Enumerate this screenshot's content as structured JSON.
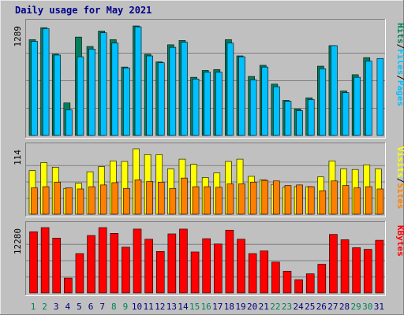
{
  "title": "Daily usage for May 2021",
  "colors": {
    "background": "#c0c0c0",
    "panel": "#c0c0c0",
    "hits": "#00805c",
    "files": "#00c0ff",
    "sites": "#ff8000",
    "visits": "#ffff00",
    "kbytes": "#ff0000",
    "scale": "#000000",
    "title": "#00008b",
    "weekend_label": "#00805c",
    "weekday_label": "#000080"
  },
  "chart_data": [
    {
      "type": "bar",
      "panel": "hits-files",
      "categories": [
        "1",
        "2",
        "3",
        "4",
        "5",
        "6",
        "7",
        "8",
        "9",
        "10",
        "11",
        "12",
        "13",
        "14",
        "15",
        "16",
        "17",
        "18",
        "19",
        "20",
        "21",
        "22",
        "23",
        "24",
        "25",
        "26",
        "27",
        "28",
        "29",
        "30",
        "31"
      ],
      "scale_label": "1289",
      "ylim": [
        0,
        1289
      ],
      "legend": [
        "Hits",
        "/",
        "Files",
        "/",
        "Pages"
      ],
      "series": [
        {
          "name": "Hits",
          "values": [
            1120,
            1260,
            950,
            380,
            1150,
            1040,
            1220,
            1120,
            800,
            1280,
            950,
            860,
            1060,
            1110,
            680,
            760,
            770,
            1120,
            930,
            690,
            820,
            600,
            410,
            310,
            440,
            810,
            1050,
            520,
            710,
            910,
            0
          ]
        },
        {
          "name": "Files",
          "values": [
            1100,
            1250,
            940,
            300,
            920,
            1010,
            1200,
            1080,
            790,
            1270,
            930,
            850,
            1030,
            1090,
            660,
            740,
            740,
            1080,
            920,
            650,
            800,
            570,
            400,
            290,
            420,
            780,
            1050,
            500,
            680,
            870,
            900
          ]
        },
        {
          "name": "Pages",
          "values": [
            0,
            0,
            0,
            0,
            0,
            0,
            0,
            0,
            0,
            0,
            0,
            0,
            0,
            0,
            0,
            0,
            0,
            0,
            0,
            0,
            0,
            0,
            0,
            0,
            0,
            0,
            0,
            0,
            0,
            0,
            0
          ]
        }
      ]
    },
    {
      "type": "bar",
      "panel": "visits-sites",
      "categories": [
        "1",
        "2",
        "3",
        "4",
        "5",
        "6",
        "7",
        "8",
        "9",
        "10",
        "11",
        "12",
        "13",
        "14",
        "15",
        "16",
        "17",
        "18",
        "19",
        "20",
        "21",
        "22",
        "23",
        "24",
        "25",
        "26",
        "27",
        "28",
        "29",
        "30",
        "31"
      ],
      "scale_label": "114",
      "ylim": [
        0,
        114
      ],
      "legend": [
        "Visits",
        "/",
        "Sites"
      ],
      "series": [
        {
          "name": "Visits",
          "values": [
            76,
            90,
            82,
            45,
            54,
            74,
            83,
            93,
            92,
            114,
            104,
            104,
            79,
            96,
            87,
            64,
            72,
            92,
            96,
            66,
            60,
            52,
            47,
            48,
            48,
            65,
            93,
            79,
            78,
            86,
            79
          ]
        },
        {
          "name": "Sites",
          "values": [
            46,
            48,
            56,
            46,
            44,
            48,
            51,
            55,
            45,
            60,
            57,
            56,
            45,
            63,
            48,
            48,
            47,
            53,
            53,
            56,
            59,
            58,
            50,
            51,
            48,
            41,
            58,
            50,
            46,
            48,
            44
          ]
        }
      ]
    },
    {
      "type": "bar",
      "panel": "kbytes",
      "categories": [
        "1",
        "2",
        "3",
        "4",
        "5",
        "6",
        "7",
        "8",
        "9",
        "10",
        "11",
        "12",
        "13",
        "14",
        "15",
        "16",
        "17",
        "18",
        "19",
        "20",
        "21",
        "22",
        "23",
        "24",
        "25",
        "26",
        "27",
        "28",
        "29",
        "30",
        "31"
      ],
      "scale_label": "12280",
      "ylim": [
        0,
        12280
      ],
      "legend": [
        "KBytes"
      ],
      "series": [
        {
          "name": "KBytes",
          "values": [
            11500,
            12280,
            10300,
            2800,
            7400,
            10800,
            12280,
            11200,
            8600,
            12000,
            10100,
            7800,
            11100,
            12000,
            7700,
            10200,
            9200,
            11800,
            10100,
            7400,
            7900,
            5800,
            4100,
            2500,
            3600,
            5400,
            11000,
            10000,
            8500,
            8200,
            9900
          ]
        }
      ]
    }
  ],
  "days": [
    {
      "label": "1",
      "weekend": true
    },
    {
      "label": "2",
      "weekend": true
    },
    {
      "label": "3",
      "weekend": false
    },
    {
      "label": "4",
      "weekend": false
    },
    {
      "label": "5",
      "weekend": false
    },
    {
      "label": "6",
      "weekend": false
    },
    {
      "label": "7",
      "weekend": false
    },
    {
      "label": "8",
      "weekend": true
    },
    {
      "label": "9",
      "weekend": true
    },
    {
      "label": "10",
      "weekend": false
    },
    {
      "label": "11",
      "weekend": false
    },
    {
      "label": "12",
      "weekend": false
    },
    {
      "label": "13",
      "weekend": false
    },
    {
      "label": "14",
      "weekend": false
    },
    {
      "label": "15",
      "weekend": true
    },
    {
      "label": "16",
      "weekend": true
    },
    {
      "label": "17",
      "weekend": false
    },
    {
      "label": "18",
      "weekend": false
    },
    {
      "label": "19",
      "weekend": false
    },
    {
      "label": "20",
      "weekend": false
    },
    {
      "label": "21",
      "weekend": false
    },
    {
      "label": "22",
      "weekend": true
    },
    {
      "label": "23",
      "weekend": true
    },
    {
      "label": "24",
      "weekend": false
    },
    {
      "label": "25",
      "weekend": false
    },
    {
      "label": "26",
      "weekend": false
    },
    {
      "label": "27",
      "weekend": false
    },
    {
      "label": "28",
      "weekend": false
    },
    {
      "label": "29",
      "weekend": true
    },
    {
      "label": "30",
      "weekend": true
    },
    {
      "label": "31",
      "weekend": false
    }
  ]
}
